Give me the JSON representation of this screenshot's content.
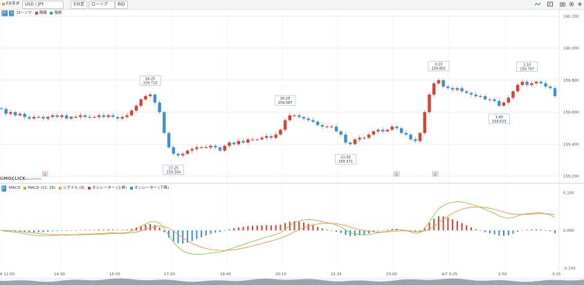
{
  "toolbar": {
    "brand": "FXネオ",
    "pair": "USD / JPY",
    "interval": "5分足",
    "chart_style": "ローソク",
    "price_type": "BID",
    "icons": [
      "draw-icon",
      "window-icon",
      "screenshot-icon",
      "settings-icon",
      "add-icon"
    ]
  },
  "main_legend": {
    "badges": [
      "中",
      "3"
    ],
    "items": [
      {
        "label": "ローソク",
        "color": null
      },
      {
        "label": "陽線",
        "color": "#e03c31"
      },
      {
        "label": "陰線",
        "color": "#3b8fd8"
      }
    ]
  },
  "macd_legend": {
    "badge": "2",
    "items": [
      {
        "label": "MACD",
        "color": null
      },
      {
        "label": "MACD (12, 26)",
        "color": "#8bc34a"
      },
      {
        "label": "シグナル (9)",
        "color": "#ff8a3d"
      },
      {
        "label": "オシレーター (上昇)",
        "color": "#e03c31"
      },
      {
        "label": "オシレーター (下降)",
        "color": "#3b8fd8"
      }
    ]
  },
  "logo": {
    "text": "GMOCLICK",
    "sub": "SECURITIES"
  },
  "markers": [
    "2",
    "1",
    "1"
  ],
  "colors": {
    "up": "#e03c31",
    "down": "#3b8fd8",
    "macd": "#8bc34a",
    "signal": "#ff8a3d",
    "grid": "#e7e7e7"
  },
  "chart_data": [
    {
      "type": "candlestick",
      "series_name": "USD / JPY 5分足 BID",
      "y_ticks": [
        "160.200",
        "160.000",
        "159.800",
        "159.600",
        "159.400",
        "159.200"
      ],
      "ylim": [
        159.16,
        160.24
      ],
      "x_ticks": [
        "6 12:55",
        "14:30",
        "15:55",
        "17:20",
        "18:45",
        "20:10",
        "21:35",
        "23:00",
        "4/7 0:25",
        "1:50",
        "3:15"
      ],
      "close": [
        159.62,
        159.59,
        159.6,
        159.58,
        159.59,
        159.57,
        159.56,
        159.57,
        159.57,
        159.56,
        159.57,
        159.58,
        159.57,
        159.58,
        159.56,
        159.57,
        159.57,
        159.58,
        159.57,
        159.57,
        159.57,
        159.58,
        159.57,
        159.58,
        159.57,
        159.56,
        159.57,
        159.58,
        159.61,
        159.64,
        159.68,
        159.7,
        159.71,
        159.66,
        159.6,
        159.47,
        159.38,
        159.34,
        159.33,
        159.34,
        159.36,
        159.37,
        159.38,
        159.38,
        159.38,
        159.39,
        159.38,
        159.36,
        159.39,
        159.41,
        159.4,
        159.42,
        159.41,
        159.43,
        159.43,
        159.43,
        159.44,
        159.45,
        159.44,
        159.46,
        159.49,
        159.55,
        159.58,
        159.58,
        159.57,
        159.56,
        159.55,
        159.54,
        159.52,
        159.51,
        159.51,
        159.51,
        159.48,
        159.46,
        159.41,
        159.4,
        159.43,
        159.44,
        159.44,
        159.46,
        159.48,
        159.49,
        159.48,
        159.49,
        159.51,
        159.5,
        159.47,
        159.46,
        159.43,
        159.42,
        159.47,
        159.6,
        159.71,
        159.78,
        159.8,
        159.76,
        159.75,
        159.74,
        159.75,
        159.73,
        159.72,
        159.71,
        159.7,
        159.7,
        159.68,
        159.68,
        159.67,
        159.64,
        159.66,
        159.69,
        159.73,
        159.77,
        159.79,
        159.77,
        159.78,
        159.79,
        159.78,
        159.76,
        159.75,
        159.7
      ]
    },
    {
      "type": "macd",
      "y_ticks": [
        "0.100",
        "0.000",
        "-0.100"
      ],
      "ylim": [
        -0.105,
        0.105
      ]
    }
  ]
}
